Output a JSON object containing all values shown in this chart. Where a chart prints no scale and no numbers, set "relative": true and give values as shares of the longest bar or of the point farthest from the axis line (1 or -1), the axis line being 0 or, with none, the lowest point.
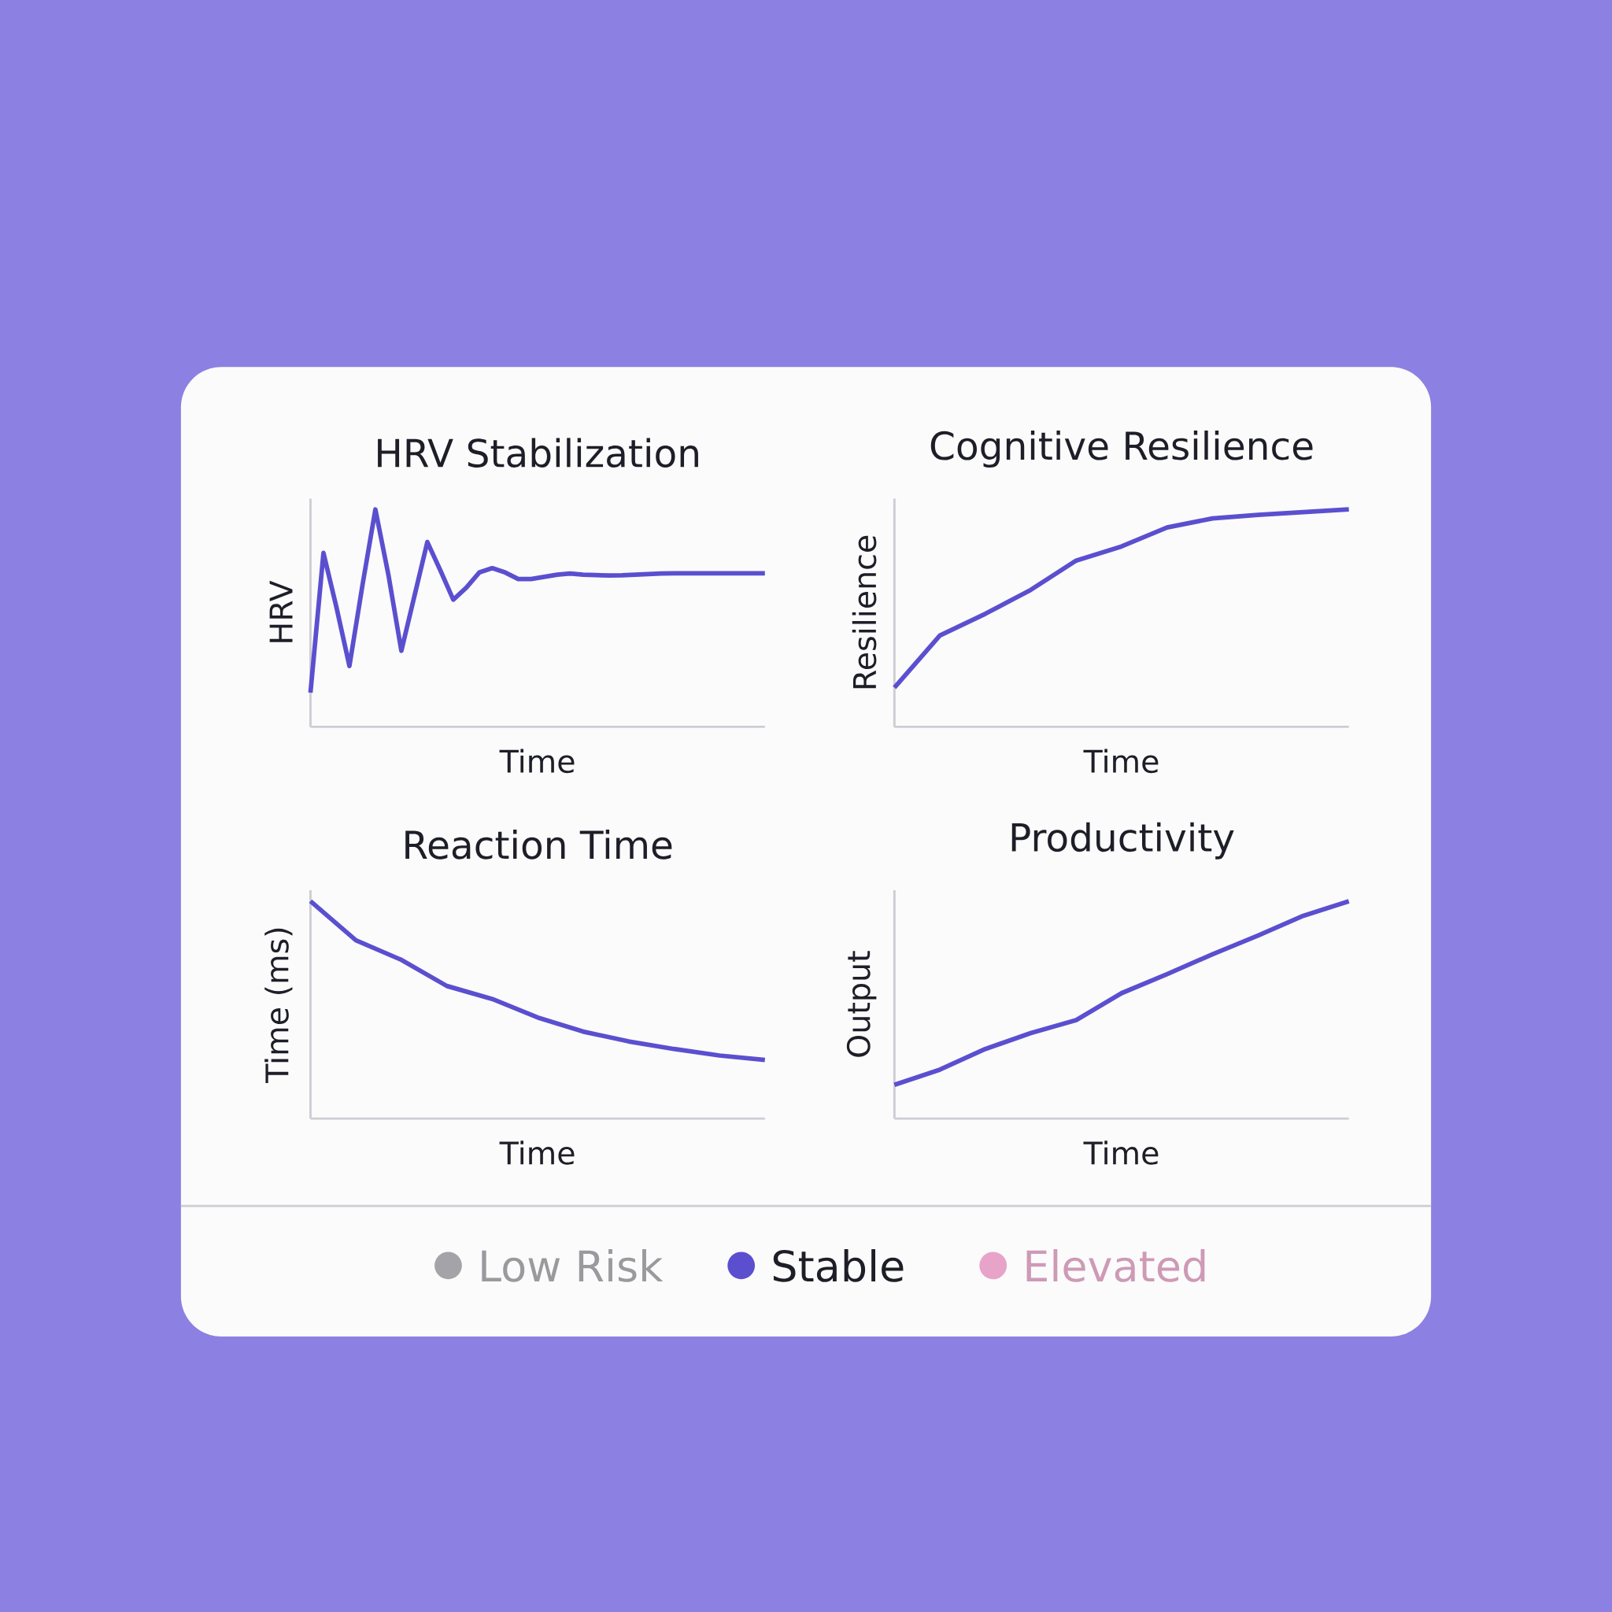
{
  "chart_data": [
    {
      "type": "line",
      "title": "HRV Stabilization",
      "xlabel": "Time",
      "ylabel": "HRV",
      "relative": true,
      "categories": [
        null,
        null,
        null,
        null,
        null,
        null,
        null,
        null,
        null,
        null,
        null,
        null,
        null,
        null,
        null,
        null,
        null,
        null,
        null,
        null,
        null,
        null,
        null,
        null,
        null,
        null,
        null,
        null,
        null,
        null,
        null,
        null,
        null,
        null,
        null,
        null
      ],
      "series": [
        {
          "color": "#5b4fd0",
          "values": [
            0.157,
            0.8,
            0.55,
            0.28,
            0.65,
            1.0,
            0.7,
            0.35,
            0.6,
            0.85,
            0.72,
            0.585,
            0.64,
            0.71,
            0.73,
            0.71,
            0.68,
            0.68,
            0.69,
            0.7,
            0.705,
            0.7,
            0.698,
            0.696,
            0.697,
            0.7,
            0.703,
            0.705,
            0.706,
            0.706,
            0.706,
            0.706,
            0.706,
            0.706,
            0.706,
            0.706
          ]
        }
      ]
    },
    {
      "type": "line",
      "title": "Cognitive Resilience",
      "xlabel": "Time",
      "ylabel": "Resilience",
      "relative": true,
      "categories": [
        null,
        null,
        null,
        null,
        null,
        null,
        null,
        null,
        null,
        null,
        null
      ],
      "series": [
        {
          "color": "#5b4fd0",
          "values": [
            0.18,
            0.42,
            0.52,
            0.63,
            0.765,
            0.83,
            0.917,
            0.959,
            0.975,
            0.988,
            1.0
          ]
        }
      ]
    },
    {
      "type": "line",
      "title": "Reaction Time",
      "xlabel": "Time",
      "ylabel": "Time (ms)",
      "relative": true,
      "categories": [
        null,
        null,
        null,
        null,
        null,
        null,
        null,
        null,
        null,
        null,
        null
      ],
      "series": [
        {
          "color": "#5b4fd0",
          "values": [
            1.0,
            0.82,
            0.73,
            0.61,
            0.55,
            0.465,
            0.4,
            0.355,
            0.32,
            0.29,
            0.27
          ]
        }
      ]
    },
    {
      "type": "line",
      "title": "Productivity",
      "xlabel": "Time",
      "ylabel": "Output",
      "relative": true,
      "categories": [
        null,
        null,
        null,
        null,
        null,
        null,
        null,
        null,
        null,
        null,
        null
      ],
      "series": [
        {
          "color": "#5b4fd0",
          "values": [
            0.155,
            0.225,
            0.32,
            0.393,
            0.453,
            0.577,
            0.664,
            0.756,
            0.842,
            0.933,
            1.0
          ]
        }
      ]
    },
    {
      "type": "other",
      "categories": [
        "Low Risk",
        "Stable",
        "Elevated"
      ],
      "colors": [
        "#a3a3a8",
        "#5b4fd0",
        "#e8a3c8"
      ]
    }
  ]
}
